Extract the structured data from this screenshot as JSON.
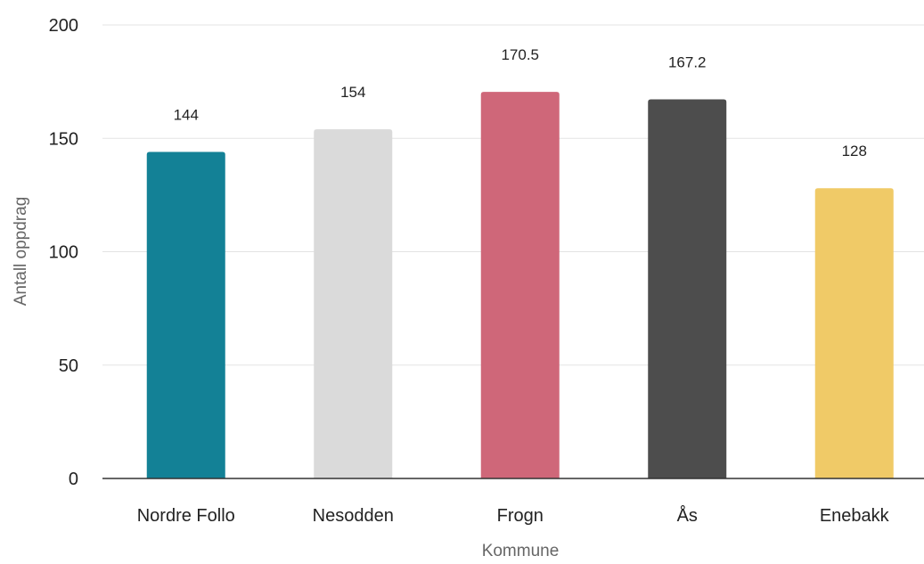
{
  "chart_data": {
    "type": "bar",
    "title": "",
    "xlabel": "Kommune",
    "ylabel": "Antall oppdrag",
    "ylim": [
      0,
      200
    ],
    "yticks": [
      0,
      50,
      100,
      150,
      200
    ],
    "grid": true,
    "legend": "none",
    "categories": [
      "Nordre Follo",
      "Nesodden",
      "Frogn",
      "Ås",
      "Enebakk"
    ],
    "values": [
      144,
      154,
      170.5,
      167.2,
      128
    ],
    "value_labels": [
      "144",
      "154",
      "170.5",
      "167.2",
      "128"
    ],
    "colors": [
      "#138196",
      "#dadada",
      "#cf6779",
      "#4d4d4d",
      "#f0ca67"
    ]
  }
}
